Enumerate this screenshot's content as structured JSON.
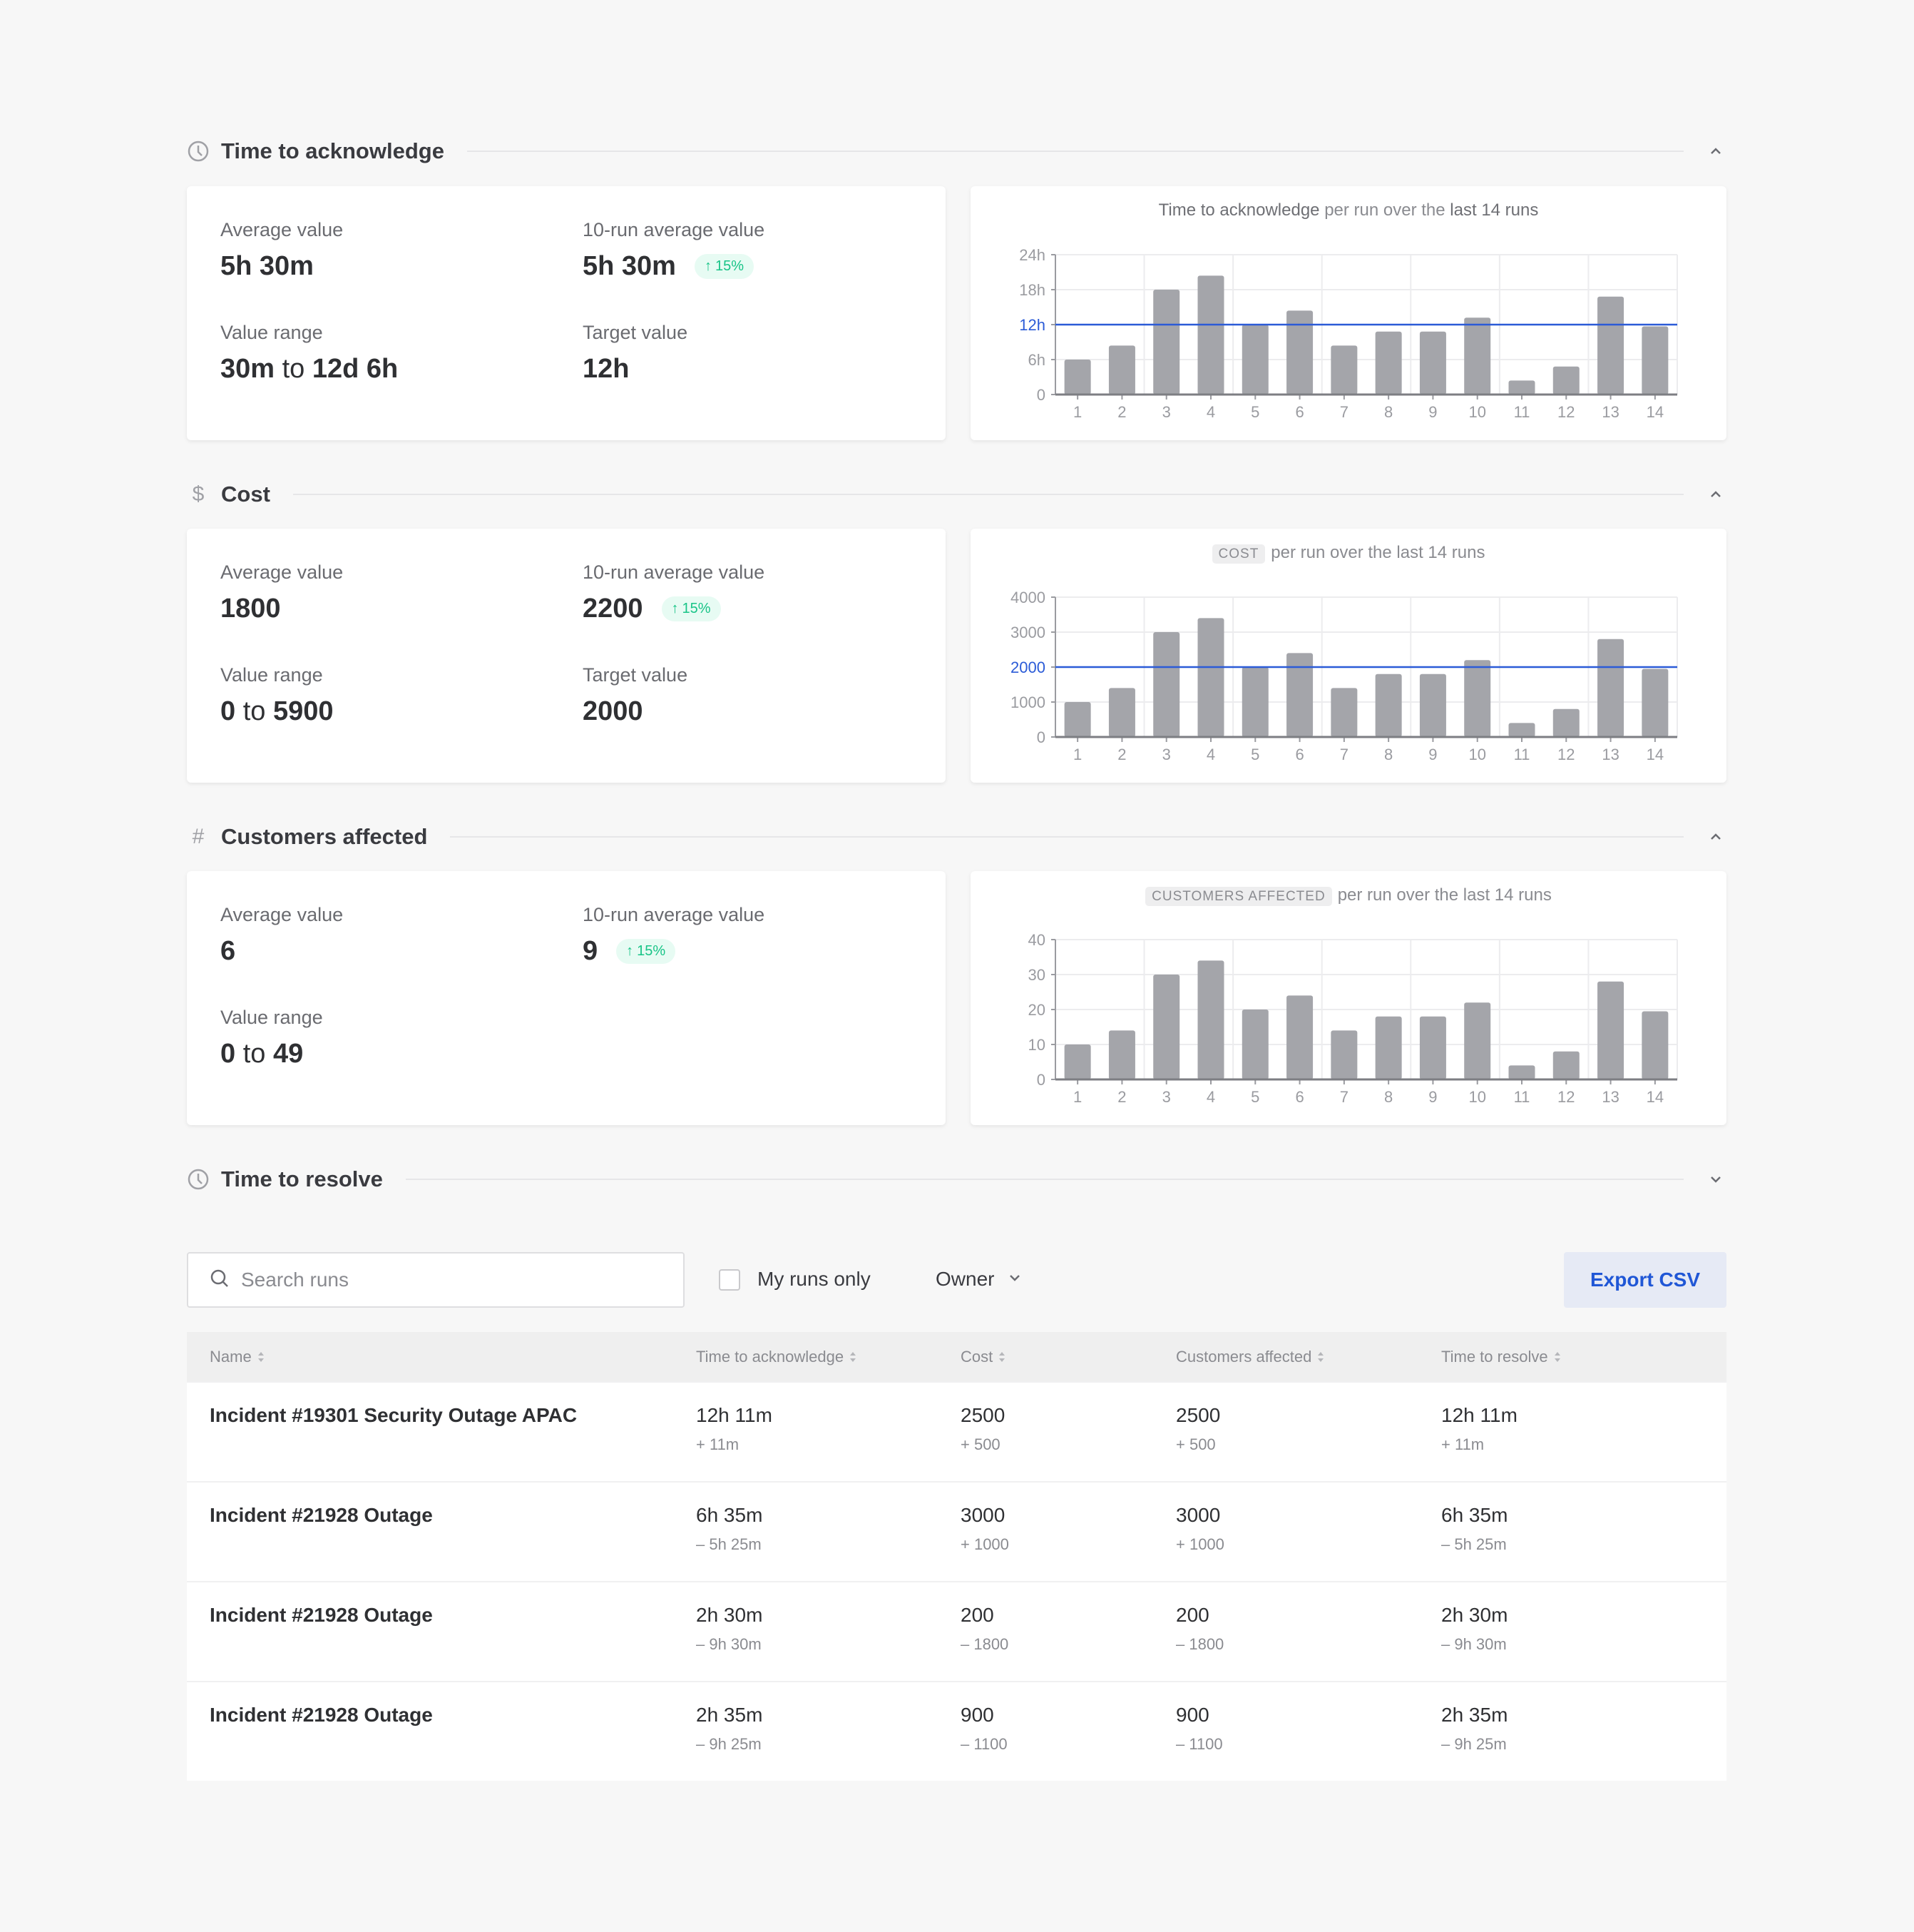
{
  "sections": {
    "ack": {
      "title": "Time to acknowledge",
      "icon": "clock-icon",
      "expanded": true,
      "metrics": {
        "avg_label": "Average value",
        "avg_value": "5h 30m",
        "run_avg_label": "10-run average value",
        "run_avg_value": "5h 30m",
        "run_avg_change": "15%",
        "range_label": "Value range",
        "range_from": "30m",
        "range_to_word": "to",
        "range_to": "12d 6h",
        "target_label": "Target value",
        "target_value": "12h"
      },
      "chart_title": {
        "metric": "Time to acknowledge",
        "middle": "per run over the",
        "tail": "last 14 runs"
      }
    },
    "cost": {
      "title": "Cost",
      "icon": "dollar-icon",
      "expanded": true,
      "metrics": {
        "avg_label": "Average value",
        "avg_value": "1800",
        "run_avg_label": "10-run average value",
        "run_avg_value": "2200",
        "run_avg_change": "15%",
        "range_label": "Value range",
        "range_from": "0",
        "range_to_word": "to",
        "range_to": "5900",
        "target_label": "Target value",
        "target_value": "2000"
      },
      "chart_title": {
        "tag": "COST",
        "rest": "per run over the last 14 runs"
      }
    },
    "customers": {
      "title": "Customers affected",
      "icon": "hash-icon",
      "expanded": true,
      "metrics": {
        "avg_label": "Average value",
        "avg_value": "6",
        "run_avg_label": "10-run average value",
        "run_avg_value": "9",
        "run_avg_change": "15%",
        "range_label": "Value range",
        "range_from": "0",
        "range_to_word": "to",
        "range_to": "49"
      },
      "chart_title": {
        "tag": "CUSTOMERS AFFECTED",
        "rest": "per run over the last 14 runs"
      }
    },
    "resolve": {
      "title": "Time to resolve",
      "icon": "clock-icon",
      "expanded": false
    }
  },
  "chart_data": [
    {
      "type": "bar",
      "categories": [
        "1",
        "2",
        "3",
        "4",
        "5",
        "6",
        "7",
        "8",
        "9",
        "10",
        "11",
        "12",
        "13",
        "14"
      ],
      "values": [
        6,
        8.4,
        18,
        20.4,
        12,
        14.4,
        8.4,
        10.8,
        10.8,
        13.2,
        2.4,
        4.8,
        16.8,
        11.7
      ],
      "unit": "h",
      "yticks": [
        "0",
        "6h",
        "12h",
        "18h",
        "24h"
      ],
      "ylim": [
        0,
        24
      ],
      "target": 12,
      "target_label": "12h",
      "grid": true,
      "bar_color": "#a4a5aa",
      "target_color": "#2b5bd7"
    },
    {
      "type": "bar",
      "categories": [
        "1",
        "2",
        "3",
        "4",
        "5",
        "6",
        "7",
        "8",
        "9",
        "10",
        "11",
        "12",
        "13",
        "14"
      ],
      "values": [
        1000,
        1400,
        3000,
        3400,
        2000,
        2400,
        1400,
        1800,
        1800,
        2200,
        400,
        800,
        2800,
        1950
      ],
      "yticks": [
        "0",
        "1000",
        "2000",
        "3000",
        "4000"
      ],
      "ylim": [
        0,
        4000
      ],
      "target": 2000,
      "target_label": "2000",
      "grid": true,
      "bar_color": "#a4a5aa",
      "target_color": "#2b5bd7"
    },
    {
      "type": "bar",
      "categories": [
        "1",
        "2",
        "3",
        "4",
        "5",
        "6",
        "7",
        "8",
        "9",
        "10",
        "11",
        "12",
        "13",
        "14"
      ],
      "values": [
        10,
        14,
        30,
        34,
        20,
        24,
        14,
        18,
        18,
        22,
        4,
        8,
        28,
        19.5
      ],
      "yticks": [
        "0",
        "10",
        "20",
        "30",
        "40"
      ],
      "ylim": [
        0,
        40
      ],
      "target": null,
      "grid": true,
      "bar_color": "#a4a5aa"
    }
  ],
  "toolbar": {
    "search_placeholder": "Search runs",
    "my_runs_label": "My runs only",
    "my_runs_checked": false,
    "owner_label": "Owner",
    "export_label": "Export CSV"
  },
  "table": {
    "headers": [
      "Name",
      "Time to acknowledge",
      "Cost",
      "Customers affected",
      "Time to resolve"
    ],
    "rows": [
      {
        "name": "Incident #19301 Security Outage APAC",
        "cells": [
          [
            "12h 11m",
            "+ 11m"
          ],
          [
            "2500",
            "+ 500"
          ],
          [
            "2500",
            "+ 500"
          ],
          [
            "12h 11m",
            "+ 11m"
          ]
        ]
      },
      {
        "name": "Incident #21928 Outage",
        "cells": [
          [
            "6h 35m",
            "– 5h 25m"
          ],
          [
            "3000",
            "+ 1000"
          ],
          [
            "3000",
            "+ 1000"
          ],
          [
            "6h 35m",
            "– 5h 25m"
          ]
        ]
      },
      {
        "name": "Incident #21928 Outage",
        "cells": [
          [
            "2h 30m",
            "– 9h 30m"
          ],
          [
            "200",
            "– 1800"
          ],
          [
            "200",
            "– 1800"
          ],
          [
            "2h 30m",
            "– 9h 30m"
          ]
        ]
      },
      {
        "name": "Incident #21928 Outage",
        "cells": [
          [
            "2h 35m",
            "– 9h 25m"
          ],
          [
            "900",
            "– 1100"
          ],
          [
            "900",
            "– 1100"
          ],
          [
            "2h 35m",
            "– 9h 25m"
          ]
        ]
      }
    ]
  }
}
